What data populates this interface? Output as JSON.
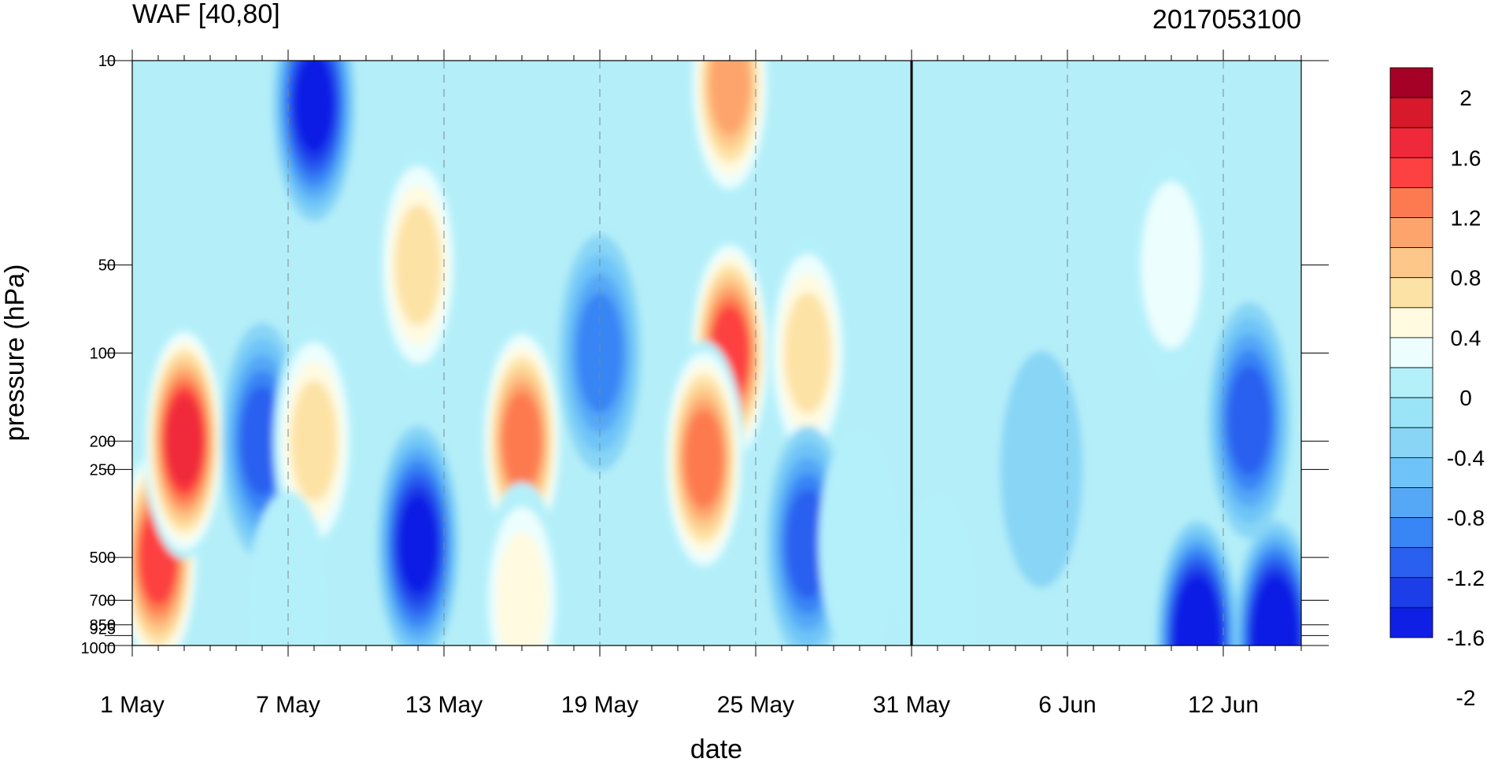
{
  "chart_data": {
    "type": "heatmap",
    "title": "WAF [40,80]",
    "subtitle": "2017053100",
    "xlabel": "date",
    "ylabel": "pressure (hPa)",
    "x_ticks": [
      "1 May",
      "7 May",
      "13 May",
      "19 May",
      "25 May",
      "31 May",
      "6 Jun",
      "12 Jun"
    ],
    "y_ticks": [
      "10",
      "50",
      "100",
      "200",
      "250",
      "500",
      "700",
      "850",
      "925",
      "1000"
    ],
    "y_scale": "log",
    "xlim": [
      "2017-05-01",
      "2017-06-15"
    ],
    "ylim": [
      1000,
      10
    ],
    "marked_date": "2017-05-31",
    "colorbar_labels": [
      "2",
      "1.6",
      "1.2",
      "0.8",
      "0.4",
      "0",
      "-0.4",
      "-0.8",
      "-1.2",
      "-1.6",
      "-2"
    ],
    "colorbar_colors": [
      "#a50026",
      "#d7192b",
      "#f0293a",
      "#fd4040",
      "#fd7a50",
      "#fda46c",
      "#fdc78a",
      "#fde2a5",
      "#fffae0",
      "#ecfefe",
      "#b4f0fa",
      "#9ae4f8",
      "#88d5f6",
      "#6ec4f8",
      "#55a8f6",
      "#3885f5",
      "#2a60ef",
      "#1c3ee8",
      "#0f1fe5"
    ],
    "points": [
      {
        "date": "2017-05-02",
        "pressure": 500,
        "value": 1.6
      },
      {
        "date": "2017-05-03",
        "pressure": 200,
        "value": 1.7
      },
      {
        "date": "2017-05-06",
        "pressure": 200,
        "value": -1.0
      },
      {
        "date": "2017-05-08",
        "pressure": 200,
        "value": 0.8
      },
      {
        "date": "2017-05-07",
        "pressure": 750,
        "value": 0.2
      },
      {
        "date": "2017-05-08",
        "pressure": 14,
        "value": -1.3
      },
      {
        "date": "2017-05-12",
        "pressure": 50,
        "value": 0.8
      },
      {
        "date": "2017-05-12",
        "pressure": 450,
        "value": -1.3
      },
      {
        "date": "2017-05-16",
        "pressure": 200,
        "value": 1.3
      },
      {
        "date": "2017-05-16",
        "pressure": 700,
        "value": 0.6
      },
      {
        "date": "2017-05-19",
        "pressure": 100,
        "value": -0.8
      },
      {
        "date": "2017-05-24",
        "pressure": 100,
        "value": 1.6
      },
      {
        "date": "2017-05-23",
        "pressure": 230,
        "value": 1.3
      },
      {
        "date": "2017-05-24",
        "pressure": 12,
        "value": 1.2
      },
      {
        "date": "2017-05-27",
        "pressure": 100,
        "value": 0.8
      },
      {
        "date": "2017-05-27",
        "pressure": 450,
        "value": -0.9
      },
      {
        "date": "2017-05-29",
        "pressure": 450,
        "value": 0.1
      },
      {
        "date": "2017-06-01",
        "pressure": 750,
        "value": 0.3
      },
      {
        "date": "2017-06-05",
        "pressure": 250,
        "value": -0.2
      },
      {
        "date": "2017-06-10",
        "pressure": 50,
        "value": 0.4
      },
      {
        "date": "2017-06-13",
        "pressure": 170,
        "value": -1.0
      },
      {
        "date": "2017-06-11",
        "pressure": 950,
        "value": -1.9
      },
      {
        "date": "2017-06-14",
        "pressure": 950,
        "value": -1.8
      }
    ]
  }
}
